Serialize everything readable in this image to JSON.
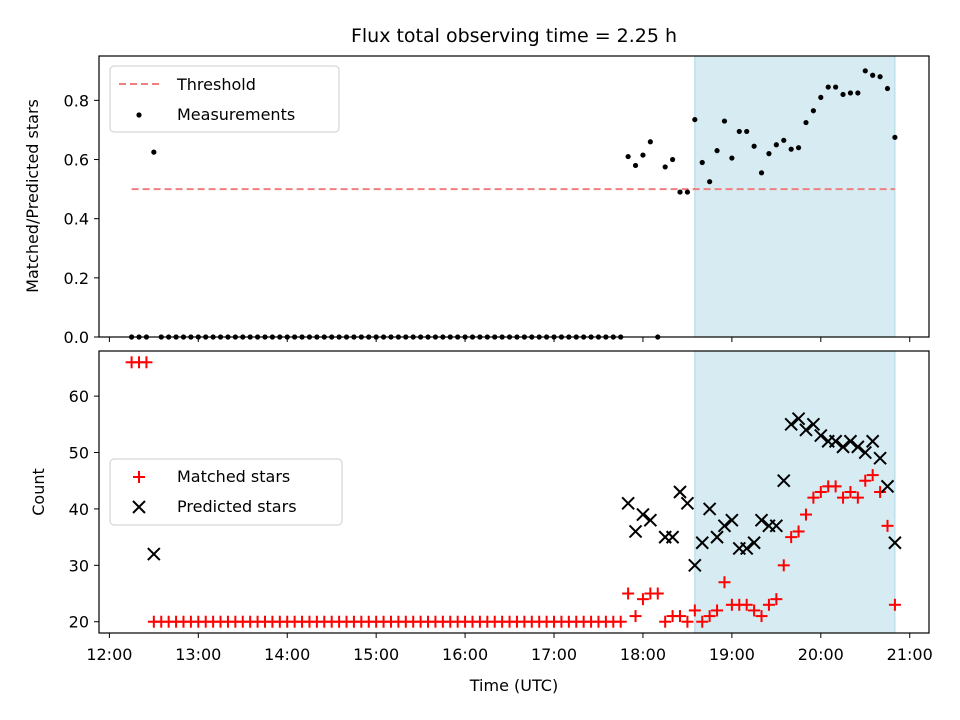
{
  "title": "Flux total observing time = 2.25 h",
  "colors": {
    "threshold": "#f08080",
    "measurement": "#000000",
    "matched": "#ff0000",
    "predicted": "#000000",
    "shade": "#add8e6"
  },
  "chart_data": [
    {
      "type": "scatter",
      "panel": "top",
      "ylabel": "Matched/Predicted stars",
      "xlabel": "",
      "xlim": [
        "11:53",
        "21:13"
      ],
      "ylim": [
        0,
        0.95
      ],
      "yticks": [
        0.0,
        0.2,
        0.4,
        0.6,
        0.8
      ],
      "ytick_labels": [
        "0.0",
        "0.2",
        "0.4",
        "0.6",
        "0.8"
      ],
      "xticks": [
        "12:00",
        "13:00",
        "14:00",
        "15:00",
        "16:00",
        "17:00",
        "18:00",
        "19:00",
        "20:00",
        "21:00"
      ],
      "shaded_span": [
        "18:35",
        "20:50"
      ],
      "legend": {
        "position": "upper-left",
        "entries": [
          "Threshold",
          "Measurements"
        ]
      },
      "threshold": {
        "name": "Threshold",
        "y": 0.5,
        "x": [
          "12:15",
          "20:50"
        ]
      },
      "series": [
        {
          "name": "Measurements",
          "points": [
            [
              "12:15",
              0.0
            ],
            [
              "12:20",
              0.0
            ],
            [
              "12:25",
              0.0
            ],
            [
              "12:30",
              0.625
            ],
            [
              "12:35",
              0.0
            ],
            [
              "12:40",
              0.0
            ],
            [
              "12:45",
              0.0
            ],
            [
              "12:50",
              0.0
            ],
            [
              "12:55",
              0.0
            ],
            [
              "13:00",
              0.0
            ],
            [
              "13:05",
              0.0
            ],
            [
              "13:10",
              0.0
            ],
            [
              "13:15",
              0.0
            ],
            [
              "13:20",
              0.0
            ],
            [
              "13:25",
              0.0
            ],
            [
              "13:30",
              0.0
            ],
            [
              "13:35",
              0.0
            ],
            [
              "13:40",
              0.0
            ],
            [
              "13:45",
              0.0
            ],
            [
              "13:50",
              0.0
            ],
            [
              "13:55",
              0.0
            ],
            [
              "14:00",
              0.0
            ],
            [
              "14:05",
              0.0
            ],
            [
              "14:10",
              0.0
            ],
            [
              "14:15",
              0.0
            ],
            [
              "14:20",
              0.0
            ],
            [
              "14:25",
              0.0
            ],
            [
              "14:30",
              0.0
            ],
            [
              "14:35",
              0.0
            ],
            [
              "14:40",
              0.0
            ],
            [
              "14:45",
              0.0
            ],
            [
              "14:50",
              0.0
            ],
            [
              "14:55",
              0.0
            ],
            [
              "15:00",
              0.0
            ],
            [
              "15:05",
              0.0
            ],
            [
              "15:10",
              0.0
            ],
            [
              "15:15",
              0.0
            ],
            [
              "15:20",
              0.0
            ],
            [
              "15:25",
              0.0
            ],
            [
              "15:30",
              0.0
            ],
            [
              "15:35",
              0.0
            ],
            [
              "15:40",
              0.0
            ],
            [
              "15:45",
              0.0
            ],
            [
              "15:50",
              0.0
            ],
            [
              "15:55",
              0.0
            ],
            [
              "16:00",
              0.0
            ],
            [
              "16:05",
              0.0
            ],
            [
              "16:10",
              0.0
            ],
            [
              "16:15",
              0.0
            ],
            [
              "16:20",
              0.0
            ],
            [
              "16:25",
              0.0
            ],
            [
              "16:30",
              0.0
            ],
            [
              "16:35",
              0.0
            ],
            [
              "16:40",
              0.0
            ],
            [
              "16:45",
              0.0
            ],
            [
              "16:50",
              0.0
            ],
            [
              "16:55",
              0.0
            ],
            [
              "17:00",
              0.0
            ],
            [
              "17:05",
              0.0
            ],
            [
              "17:10",
              0.0
            ],
            [
              "17:15",
              0.0
            ],
            [
              "17:20",
              0.0
            ],
            [
              "17:25",
              0.0
            ],
            [
              "17:30",
              0.0
            ],
            [
              "17:35",
              0.0
            ],
            [
              "17:40",
              0.0
            ],
            [
              "17:45",
              0.0
            ],
            [
              "17:50",
              0.61
            ],
            [
              "17:55",
              0.58
            ],
            [
              "18:00",
              0.615
            ],
            [
              "18:05",
              0.66
            ],
            [
              "18:10",
              0.0
            ],
            [
              "18:15",
              0.575
            ],
            [
              "18:20",
              0.6
            ],
            [
              "18:25",
              0.49
            ],
            [
              "18:30",
              0.49
            ],
            [
              "18:35",
              0.735
            ],
            [
              "18:40",
              0.59
            ],
            [
              "18:45",
              0.525
            ],
            [
              "18:50",
              0.63
            ],
            [
              "18:55",
              0.73
            ],
            [
              "19:00",
              0.605
            ],
            [
              "19:05",
              0.695
            ],
            [
              "19:10",
              0.695
            ],
            [
              "19:15",
              0.645
            ],
            [
              "19:20",
              0.555
            ],
            [
              "19:25",
              0.62
            ],
            [
              "19:30",
              0.65
            ],
            [
              "19:35",
              0.665
            ],
            [
              "19:40",
              0.635
            ],
            [
              "19:45",
              0.64
            ],
            [
              "19:50",
              0.725
            ],
            [
              "19:55",
              0.765
            ],
            [
              "20:00",
              0.81
            ],
            [
              "20:05",
              0.845
            ],
            [
              "20:10",
              0.845
            ],
            [
              "20:15",
              0.82
            ],
            [
              "20:20",
              0.825
            ],
            [
              "20:25",
              0.825
            ],
            [
              "20:30",
              0.9
            ],
            [
              "20:35",
              0.885
            ],
            [
              "20:40",
              0.88
            ],
            [
              "20:45",
              0.84
            ],
            [
              "20:50",
              0.675
            ]
          ]
        }
      ]
    },
    {
      "type": "scatter",
      "panel": "bottom",
      "ylabel": "Count",
      "xlabel": "Time (UTC)",
      "xlim": [
        "11:53",
        "21:13"
      ],
      "ylim": [
        18,
        68
      ],
      "yticks": [
        20,
        30,
        40,
        50,
        60
      ],
      "ytick_labels": [
        "20",
        "30",
        "40",
        "50",
        "60"
      ],
      "xticks": [
        "12:00",
        "13:00",
        "14:00",
        "15:00",
        "16:00",
        "17:00",
        "18:00",
        "19:00",
        "20:00",
        "21:00"
      ],
      "shaded_span": [
        "18:35",
        "20:50"
      ],
      "legend": {
        "position": "center-left",
        "entries": [
          "Matched stars",
          "Predicted stars"
        ]
      },
      "series": [
        {
          "name": "Matched stars",
          "marker": "+",
          "points": [
            [
              "12:15",
              66
            ],
            [
              "12:20",
              66
            ],
            [
              "12:25",
              66
            ],
            [
              "12:30",
              20
            ],
            [
              "12:35",
              20
            ],
            [
              "12:40",
              20
            ],
            [
              "12:45",
              20
            ],
            [
              "12:50",
              20
            ],
            [
              "12:55",
              20
            ],
            [
              "13:00",
              20
            ],
            [
              "13:05",
              20
            ],
            [
              "13:10",
              20
            ],
            [
              "13:15",
              20
            ],
            [
              "13:20",
              20
            ],
            [
              "13:25",
              20
            ],
            [
              "13:30",
              20
            ],
            [
              "13:35",
              20
            ],
            [
              "13:40",
              20
            ],
            [
              "13:45",
              20
            ],
            [
              "13:50",
              20
            ],
            [
              "13:55",
              20
            ],
            [
              "14:00",
              20
            ],
            [
              "14:05",
              20
            ],
            [
              "14:10",
              20
            ],
            [
              "14:15",
              20
            ],
            [
              "14:20",
              20
            ],
            [
              "14:25",
              20
            ],
            [
              "14:30",
              20
            ],
            [
              "14:35",
              20
            ],
            [
              "14:40",
              20
            ],
            [
              "14:45",
              20
            ],
            [
              "14:50",
              20
            ],
            [
              "14:55",
              20
            ],
            [
              "15:00",
              20
            ],
            [
              "15:05",
              20
            ],
            [
              "15:10",
              20
            ],
            [
              "15:15",
              20
            ],
            [
              "15:20",
              20
            ],
            [
              "15:25",
              20
            ],
            [
              "15:30",
              20
            ],
            [
              "15:35",
              20
            ],
            [
              "15:40",
              20
            ],
            [
              "15:45",
              20
            ],
            [
              "15:50",
              20
            ],
            [
              "15:55",
              20
            ],
            [
              "16:00",
              20
            ],
            [
              "16:05",
              20
            ],
            [
              "16:10",
              20
            ],
            [
              "16:15",
              20
            ],
            [
              "16:20",
              20
            ],
            [
              "16:25",
              20
            ],
            [
              "16:30",
              20
            ],
            [
              "16:35",
              20
            ],
            [
              "16:40",
              20
            ],
            [
              "16:45",
              20
            ],
            [
              "16:50",
              20
            ],
            [
              "16:55",
              20
            ],
            [
              "17:00",
              20
            ],
            [
              "17:05",
              20
            ],
            [
              "17:10",
              20
            ],
            [
              "17:15",
              20
            ],
            [
              "17:20",
              20
            ],
            [
              "17:25",
              20
            ],
            [
              "17:30",
              20
            ],
            [
              "17:35",
              20
            ],
            [
              "17:40",
              20
            ],
            [
              "17:45",
              20
            ],
            [
              "17:50",
              25
            ],
            [
              "17:55",
              21
            ],
            [
              "18:00",
              24
            ],
            [
              "18:05",
              25
            ],
            [
              "18:10",
              25
            ],
            [
              "18:15",
              20
            ],
            [
              "18:20",
              21
            ],
            [
              "18:25",
              21
            ],
            [
              "18:30",
              20
            ],
            [
              "18:35",
              22
            ],
            [
              "18:40",
              20
            ],
            [
              "18:45",
              21
            ],
            [
              "18:50",
              22
            ],
            [
              "18:55",
              27
            ],
            [
              "19:00",
              23
            ],
            [
              "19:05",
              23
            ],
            [
              "19:10",
              23
            ],
            [
              "19:15",
              22
            ],
            [
              "19:20",
              21
            ],
            [
              "19:25",
              23
            ],
            [
              "19:30",
              24
            ],
            [
              "19:35",
              30
            ],
            [
              "19:40",
              35
            ],
            [
              "19:45",
              36
            ],
            [
              "19:50",
              39
            ],
            [
              "19:55",
              42
            ],
            [
              "20:00",
              43
            ],
            [
              "20:05",
              44
            ],
            [
              "20:10",
              44
            ],
            [
              "20:15",
              42
            ],
            [
              "20:20",
              43
            ],
            [
              "20:25",
              42
            ],
            [
              "20:30",
              45
            ],
            [
              "20:35",
              46
            ],
            [
              "20:40",
              43
            ],
            [
              "20:45",
              37
            ],
            [
              "20:50",
              23
            ]
          ]
        },
        {
          "name": "Predicted stars",
          "marker": "x",
          "points": [
            [
              "12:30",
              32
            ],
            [
              "17:50",
              41
            ],
            [
              "17:55",
              36
            ],
            [
              "18:00",
              39
            ],
            [
              "18:05",
              38
            ],
            [
              "18:15",
              35
            ],
            [
              "18:20",
              35
            ],
            [
              "18:25",
              43
            ],
            [
              "18:30",
              41
            ],
            [
              "18:35",
              30
            ],
            [
              "18:40",
              34
            ],
            [
              "18:45",
              40
            ],
            [
              "18:50",
              35
            ],
            [
              "18:55",
              37
            ],
            [
              "19:00",
              38
            ],
            [
              "19:05",
              33
            ],
            [
              "19:10",
              33
            ],
            [
              "19:15",
              34
            ],
            [
              "19:20",
              38
            ],
            [
              "19:25",
              37
            ],
            [
              "19:30",
              37
            ],
            [
              "19:35",
              45
            ],
            [
              "19:40",
              55
            ],
            [
              "19:45",
              56
            ],
            [
              "19:50",
              54
            ],
            [
              "19:55",
              55
            ],
            [
              "20:00",
              53
            ],
            [
              "20:05",
              52
            ],
            [
              "20:10",
              52
            ],
            [
              "20:15",
              51
            ],
            [
              "20:20",
              52
            ],
            [
              "20:25",
              51
            ],
            [
              "20:30",
              50
            ],
            [
              "20:35",
              52
            ],
            [
              "20:40",
              49
            ],
            [
              "20:45",
              44
            ],
            [
              "20:50",
              34
            ]
          ]
        }
      ]
    }
  ]
}
